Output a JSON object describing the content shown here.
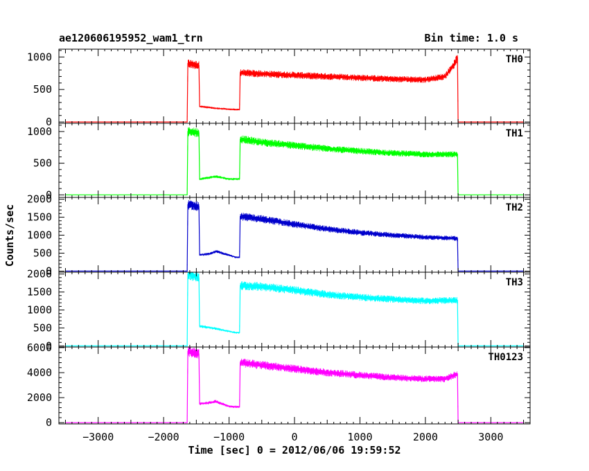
{
  "header": {
    "source": "ae120606195952_wam1_trn",
    "bin_time": "Bin time: 1.0 s"
  },
  "chart_data": {
    "type": "line",
    "xlabel": "Time [sec] 0 = 2012/06/06 19:59:52",
    "ylabel": "Counts/sec",
    "xlim": [
      -3600,
      3600
    ],
    "x_ticks": [
      -3000,
      -2000,
      -1000,
      0,
      1000,
      2000,
      3000
    ],
    "x_tick_labels": [
      "−3000",
      "−2000",
      "−1000",
      "0",
      "1000",
      "2000",
      "3000"
    ],
    "grid": false,
    "noise_fraction": 0.05,
    "panels": [
      {
        "name": "TH0",
        "color": "#ff0000",
        "ylim": [
          -20,
          1120
        ],
        "y_ticks": [
          0,
          500,
          1000
        ],
        "y_tick_labels": [
          "0",
          "500",
          "1000"
        ],
        "data": [
          [
            -3500,
            0
          ],
          [
            -1640,
            0
          ],
          [
            -1630,
            900
          ],
          [
            -1460,
            870
          ],
          [
            -1450,
            240
          ],
          [
            -1200,
            210
          ],
          [
            -900,
            190
          ],
          [
            -840,
            190
          ],
          [
            -830,
            760
          ],
          [
            -500,
            740
          ],
          [
            0,
            720
          ],
          [
            500,
            700
          ],
          [
            1000,
            680
          ],
          [
            1500,
            660
          ],
          [
            2000,
            650
          ],
          [
            2300,
            700
          ],
          [
            2450,
            900
          ],
          [
            2490,
            1000
          ],
          [
            2500,
            0
          ],
          [
            3500,
            0
          ]
        ]
      },
      {
        "name": "TH1",
        "color": "#00ff00",
        "ylim": [
          -40,
          1130
        ],
        "y_ticks": [
          0,
          500,
          1000
        ],
        "y_tick_labels": [
          "0",
          "500",
          "1000"
        ],
        "data": [
          [
            -3500,
            0
          ],
          [
            -1640,
            0
          ],
          [
            -1630,
            1000
          ],
          [
            -1460,
            980
          ],
          [
            -1450,
            250
          ],
          [
            -1200,
            290
          ],
          [
            -1000,
            250
          ],
          [
            -840,
            250
          ],
          [
            -830,
            880
          ],
          [
            -500,
            830
          ],
          [
            0,
            780
          ],
          [
            500,
            730
          ],
          [
            1000,
            690
          ],
          [
            1500,
            660
          ],
          [
            2000,
            640
          ],
          [
            2490,
            640
          ],
          [
            2500,
            0
          ],
          [
            3500,
            0
          ]
        ]
      },
      {
        "name": "TH2",
        "color": "#0000cc",
        "ylim": [
          -30,
          2050
        ],
        "y_ticks": [
          0,
          500,
          1000,
          1500,
          2000
        ],
        "y_tick_labels": [
          "0",
          "500",
          "1000",
          "1500",
          "2000"
        ],
        "data": [
          [
            -3500,
            0
          ],
          [
            -1640,
            0
          ],
          [
            -1630,
            1850
          ],
          [
            -1460,
            1800
          ],
          [
            -1450,
            450
          ],
          [
            -1300,
            480
          ],
          [
            -1200,
            550
          ],
          [
            -900,
            390
          ],
          [
            -840,
            380
          ],
          [
            -830,
            1520
          ],
          [
            -500,
            1450
          ],
          [
            0,
            1300
          ],
          [
            500,
            1170
          ],
          [
            1000,
            1070
          ],
          [
            1500,
            1000
          ],
          [
            2000,
            940
          ],
          [
            2490,
            910
          ],
          [
            2500,
            0
          ],
          [
            3500,
            0
          ]
        ]
      },
      {
        "name": "TH3",
        "color": "#00ffff",
        "ylim": [
          -30,
          2050
        ],
        "y_ticks": [
          0,
          500,
          1000,
          1500,
          2000
        ],
        "y_tick_labels": [
          "0",
          "500",
          "1000",
          "1500",
          "2000"
        ],
        "data": [
          [
            -3500,
            0
          ],
          [
            -1640,
            0
          ],
          [
            -1630,
            2000
          ],
          [
            -1460,
            1900
          ],
          [
            -1450,
            550
          ],
          [
            -1200,
            480
          ],
          [
            -900,
            370
          ],
          [
            -840,
            370
          ],
          [
            -830,
            1680
          ],
          [
            -500,
            1650
          ],
          [
            0,
            1550
          ],
          [
            500,
            1430
          ],
          [
            1000,
            1350
          ],
          [
            1500,
            1300
          ],
          [
            2000,
            1250
          ],
          [
            2490,
            1270
          ],
          [
            2500,
            0
          ],
          [
            3500,
            0
          ]
        ]
      },
      {
        "name": "TH0123",
        "color": "#ff00ff",
        "ylim": [
          -100,
          6050
        ],
        "y_ticks": [
          0,
          2000,
          4000,
          6000
        ],
        "y_tick_labels": [
          "0",
          "2000",
          "4000",
          "6000"
        ],
        "data": [
          [
            -3500,
            0
          ],
          [
            -1640,
            0
          ],
          [
            -1630,
            5700
          ],
          [
            -1460,
            5500
          ],
          [
            -1450,
            1500
          ],
          [
            -1300,
            1600
          ],
          [
            -1200,
            1700
          ],
          [
            -1000,
            1300
          ],
          [
            -840,
            1250
          ],
          [
            -830,
            4800
          ],
          [
            -500,
            4600
          ],
          [
            0,
            4300
          ],
          [
            500,
            4000
          ],
          [
            1000,
            3800
          ],
          [
            1500,
            3600
          ],
          [
            2000,
            3500
          ],
          [
            2300,
            3500
          ],
          [
            2490,
            3900
          ],
          [
            2500,
            0
          ],
          [
            3500,
            0
          ]
        ]
      }
    ]
  }
}
